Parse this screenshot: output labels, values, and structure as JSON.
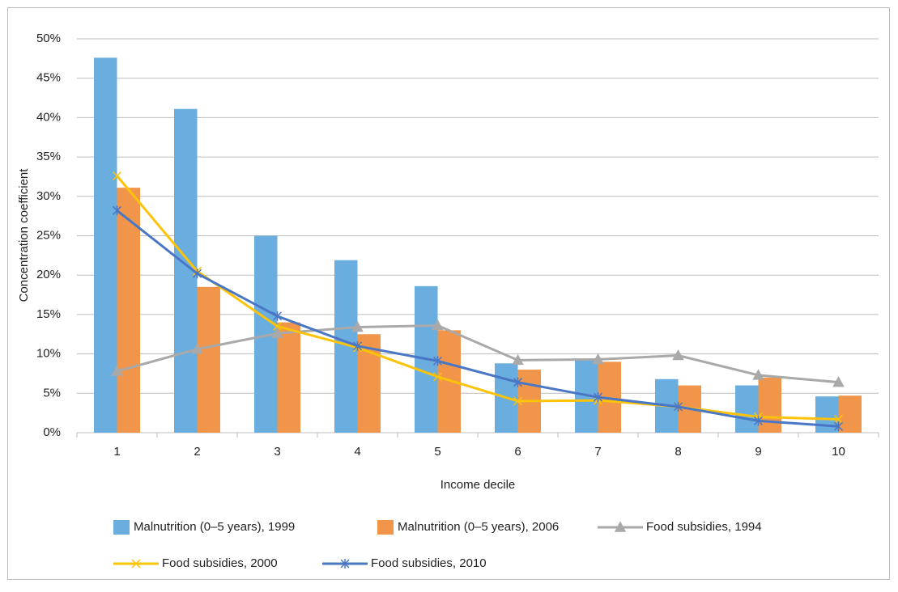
{
  "chart_data": {
    "type": "bar_line",
    "x_label": "Income decile",
    "y_label": "Concentration coefficient",
    "categories": [
      "1",
      "2",
      "3",
      "4",
      "5",
      "6",
      "7",
      "8",
      "9",
      "10"
    ],
    "ylim": [
      0,
      50
    ],
    "yticks": [
      {
        "value": 0,
        "label": "0%"
      },
      {
        "value": 5,
        "label": "5%"
      },
      {
        "value": 10,
        "label": "10%"
      },
      {
        "value": 15,
        "label": "15%"
      },
      {
        "value": 20,
        "label": "20%"
      },
      {
        "value": 25,
        "label": "25%"
      },
      {
        "value": 30,
        "label": "30%"
      },
      {
        "value": 35,
        "label": "35%"
      },
      {
        "value": 40,
        "label": "40%"
      },
      {
        "value": 45,
        "label": "45%"
      },
      {
        "value": 50,
        "label": "50%"
      }
    ],
    "grid": true,
    "legend": "bottom",
    "series": [
      {
        "name": "Malnutrition (0–5 years), 1999",
        "type": "bar",
        "color": "#6aaddf",
        "values": [
          47.6,
          41.1,
          25.0,
          21.9,
          18.6,
          8.8,
          9.4,
          6.8,
          6.0,
          4.6
        ]
      },
      {
        "name": "Malnutrition (0–5 years), 2006",
        "type": "bar",
        "color": "#f0954a",
        "values": [
          31.1,
          18.5,
          14.0,
          12.5,
          13.0,
          8.0,
          9.0,
          6.0,
          7.0,
          4.7
        ]
      },
      {
        "name": "Food subsidies, 1994",
        "type": "line",
        "marker": "triangle",
        "color": "#a9a9a9",
        "values": [
          7.8,
          10.6,
          12.6,
          13.4,
          13.6,
          9.2,
          9.3,
          9.8,
          7.3,
          6.4
        ]
      },
      {
        "name": "Food subsidies, 2000",
        "type": "line",
        "marker": "x",
        "color": "#fcc30a",
        "values": [
          32.6,
          20.5,
          13.5,
          10.8,
          7.1,
          4.0,
          4.1,
          3.3,
          2.0,
          1.7
        ]
      },
      {
        "name": "Food subsidies, 2010",
        "type": "line",
        "marker": "star",
        "color": "#4a77c5",
        "values": [
          28.2,
          20.2,
          14.8,
          11.0,
          9.1,
          6.4,
          4.5,
          3.3,
          1.5,
          0.8
        ]
      }
    ]
  }
}
